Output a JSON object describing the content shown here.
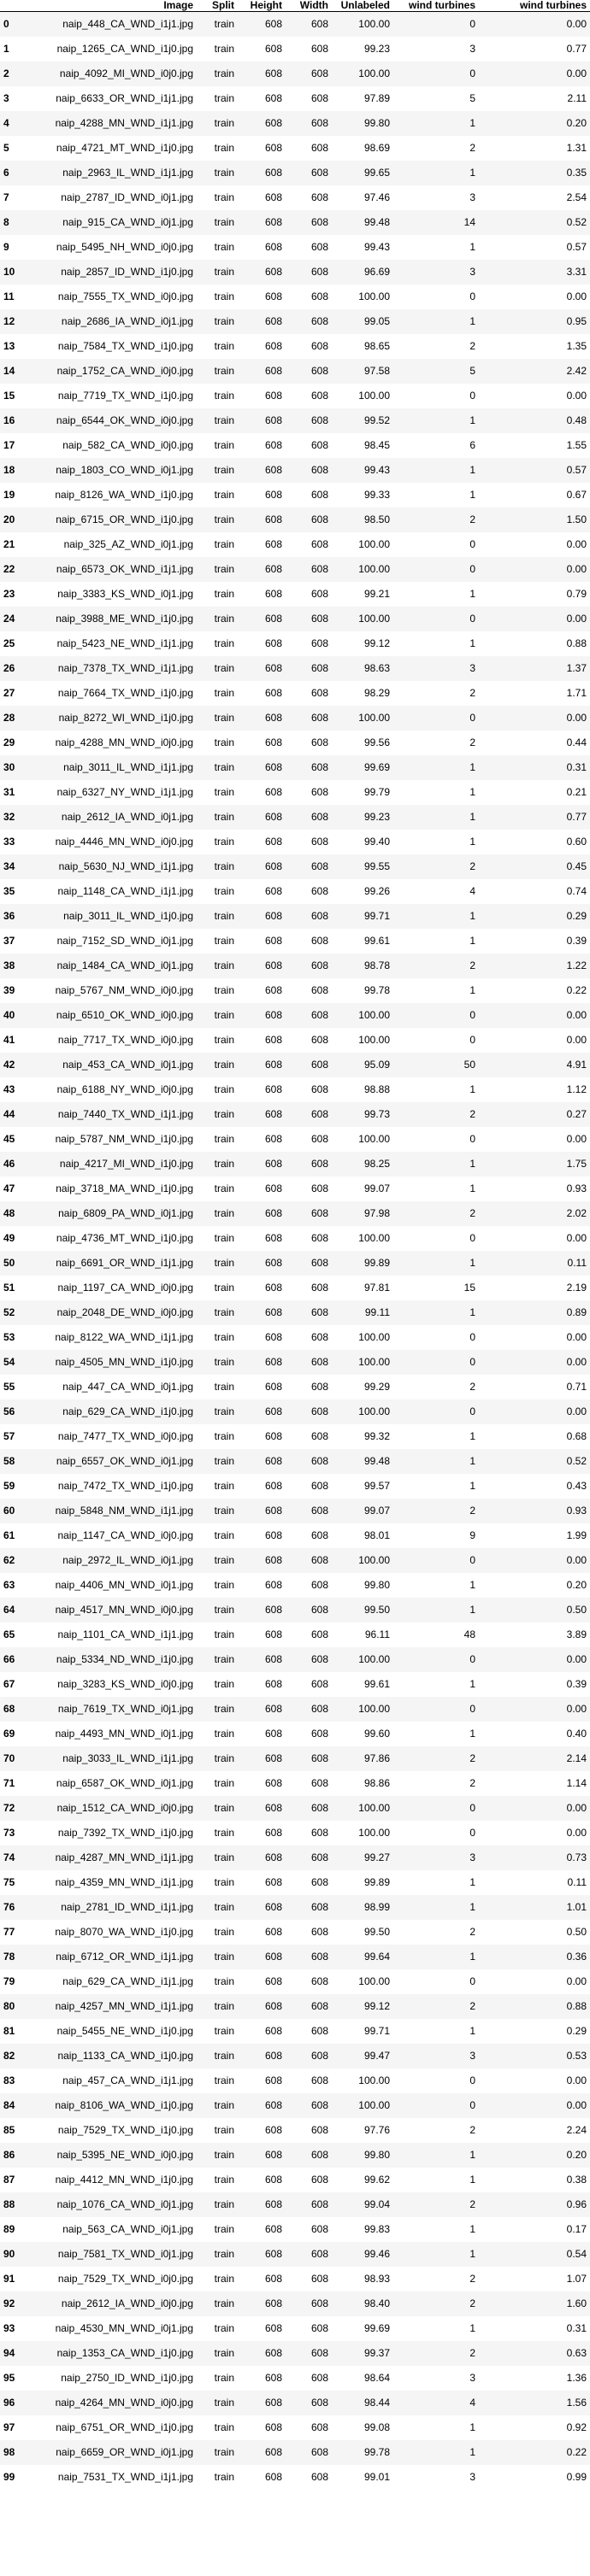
{
  "columns": [
    "",
    "Image",
    "Split",
    "Height",
    "Width",
    "Unlabeled",
    "wind turbines",
    "wind turbines"
  ],
  "rows": [
    [
      "0",
      "naip_448_CA_WND_i1j1.jpg",
      "train",
      "608",
      "608",
      "100.00",
      "0",
      "0.00"
    ],
    [
      "1",
      "naip_1265_CA_WND_i1j0.jpg",
      "train",
      "608",
      "608",
      "99.23",
      "3",
      "0.77"
    ],
    [
      "2",
      "naip_4092_MI_WND_i0j0.jpg",
      "train",
      "608",
      "608",
      "100.00",
      "0",
      "0.00"
    ],
    [
      "3",
      "naip_6633_OR_WND_i1j1.jpg",
      "train",
      "608",
      "608",
      "97.89",
      "5",
      "2.11"
    ],
    [
      "4",
      "naip_4288_MN_WND_i1j1.jpg",
      "train",
      "608",
      "608",
      "99.80",
      "1",
      "0.20"
    ],
    [
      "5",
      "naip_4721_MT_WND_i1j0.jpg",
      "train",
      "608",
      "608",
      "98.69",
      "2",
      "1.31"
    ],
    [
      "6",
      "naip_2963_IL_WND_i1j1.jpg",
      "train",
      "608",
      "608",
      "99.65",
      "1",
      "0.35"
    ],
    [
      "7",
      "naip_2787_ID_WND_i0j1.jpg",
      "train",
      "608",
      "608",
      "97.46",
      "3",
      "2.54"
    ],
    [
      "8",
      "naip_915_CA_WND_i0j1.jpg",
      "train",
      "608",
      "608",
      "99.48",
      "14",
      "0.52"
    ],
    [
      "9",
      "naip_5495_NH_WND_i0j0.jpg",
      "train",
      "608",
      "608",
      "99.43",
      "1",
      "0.57"
    ],
    [
      "10",
      "naip_2857_ID_WND_i1j0.jpg",
      "train",
      "608",
      "608",
      "96.69",
      "3",
      "3.31"
    ],
    [
      "11",
      "naip_7555_TX_WND_i0j0.jpg",
      "train",
      "608",
      "608",
      "100.00",
      "0",
      "0.00"
    ],
    [
      "12",
      "naip_2686_IA_WND_i0j1.jpg",
      "train",
      "608",
      "608",
      "99.05",
      "1",
      "0.95"
    ],
    [
      "13",
      "naip_7584_TX_WND_i1j0.jpg",
      "train",
      "608",
      "608",
      "98.65",
      "2",
      "1.35"
    ],
    [
      "14",
      "naip_1752_CA_WND_i0j0.jpg",
      "train",
      "608",
      "608",
      "97.58",
      "5",
      "2.42"
    ],
    [
      "15",
      "naip_7719_TX_WND_i1j0.jpg",
      "train",
      "608",
      "608",
      "100.00",
      "0",
      "0.00"
    ],
    [
      "16",
      "naip_6544_OK_WND_i0j0.jpg",
      "train",
      "608",
      "608",
      "99.52",
      "1",
      "0.48"
    ],
    [
      "17",
      "naip_582_CA_WND_i0j0.jpg",
      "train",
      "608",
      "608",
      "98.45",
      "6",
      "1.55"
    ],
    [
      "18",
      "naip_1803_CO_WND_i0j1.jpg",
      "train",
      "608",
      "608",
      "99.43",
      "1",
      "0.57"
    ],
    [
      "19",
      "naip_8126_WA_WND_i1j0.jpg",
      "train",
      "608",
      "608",
      "99.33",
      "1",
      "0.67"
    ],
    [
      "20",
      "naip_6715_OR_WND_i1j0.jpg",
      "train",
      "608",
      "608",
      "98.50",
      "2",
      "1.50"
    ],
    [
      "21",
      "naip_325_AZ_WND_i0j1.jpg",
      "train",
      "608",
      "608",
      "100.00",
      "0",
      "0.00"
    ],
    [
      "22",
      "naip_6573_OK_WND_i1j1.jpg",
      "train",
      "608",
      "608",
      "100.00",
      "0",
      "0.00"
    ],
    [
      "23",
      "naip_3383_KS_WND_i0j1.jpg",
      "train",
      "608",
      "608",
      "99.21",
      "1",
      "0.79"
    ],
    [
      "24",
      "naip_3988_ME_WND_i1j0.jpg",
      "train",
      "608",
      "608",
      "100.00",
      "0",
      "0.00"
    ],
    [
      "25",
      "naip_5423_NE_WND_i1j1.jpg",
      "train",
      "608",
      "608",
      "99.12",
      "1",
      "0.88"
    ],
    [
      "26",
      "naip_7378_TX_WND_i1j1.jpg",
      "train",
      "608",
      "608",
      "98.63",
      "3",
      "1.37"
    ],
    [
      "27",
      "naip_7664_TX_WND_i1j0.jpg",
      "train",
      "608",
      "608",
      "98.29",
      "2",
      "1.71"
    ],
    [
      "28",
      "naip_8272_WI_WND_i1j0.jpg",
      "train",
      "608",
      "608",
      "100.00",
      "0",
      "0.00"
    ],
    [
      "29",
      "naip_4288_MN_WND_i0j0.jpg",
      "train",
      "608",
      "608",
      "99.56",
      "2",
      "0.44"
    ],
    [
      "30",
      "naip_3011_IL_WND_i1j1.jpg",
      "train",
      "608",
      "608",
      "99.69",
      "1",
      "0.31"
    ],
    [
      "31",
      "naip_6327_NY_WND_i1j1.jpg",
      "train",
      "608",
      "608",
      "99.79",
      "1",
      "0.21"
    ],
    [
      "32",
      "naip_2612_IA_WND_i0j1.jpg",
      "train",
      "608",
      "608",
      "99.23",
      "1",
      "0.77"
    ],
    [
      "33",
      "naip_4446_MN_WND_i0j0.jpg",
      "train",
      "608",
      "608",
      "99.40",
      "1",
      "0.60"
    ],
    [
      "34",
      "naip_5630_NJ_WND_i1j1.jpg",
      "train",
      "608",
      "608",
      "99.55",
      "2",
      "0.45"
    ],
    [
      "35",
      "naip_1148_CA_WND_i1j1.jpg",
      "train",
      "608",
      "608",
      "99.26",
      "4",
      "0.74"
    ],
    [
      "36",
      "naip_3011_IL_WND_i1j0.jpg",
      "train",
      "608",
      "608",
      "99.71",
      "1",
      "0.29"
    ],
    [
      "37",
      "naip_7152_SD_WND_i0j1.jpg",
      "train",
      "608",
      "608",
      "99.61",
      "1",
      "0.39"
    ],
    [
      "38",
      "naip_1484_CA_WND_i0j1.jpg",
      "train",
      "608",
      "608",
      "98.78",
      "2",
      "1.22"
    ],
    [
      "39",
      "naip_5767_NM_WND_i0j0.jpg",
      "train",
      "608",
      "608",
      "99.78",
      "1",
      "0.22"
    ],
    [
      "40",
      "naip_6510_OK_WND_i0j0.jpg",
      "train",
      "608",
      "608",
      "100.00",
      "0",
      "0.00"
    ],
    [
      "41",
      "naip_7717_TX_WND_i0j0.jpg",
      "train",
      "608",
      "608",
      "100.00",
      "0",
      "0.00"
    ],
    [
      "42",
      "naip_453_CA_WND_i0j1.jpg",
      "train",
      "608",
      "608",
      "95.09",
      "50",
      "4.91"
    ],
    [
      "43",
      "naip_6188_NY_WND_i0j0.jpg",
      "train",
      "608",
      "608",
      "98.88",
      "1",
      "1.12"
    ],
    [
      "44",
      "naip_7440_TX_WND_i1j1.jpg",
      "train",
      "608",
      "608",
      "99.73",
      "2",
      "0.27"
    ],
    [
      "45",
      "naip_5787_NM_WND_i1j0.jpg",
      "train",
      "608",
      "608",
      "100.00",
      "0",
      "0.00"
    ],
    [
      "46",
      "naip_4217_MI_WND_i1j0.jpg",
      "train",
      "608",
      "608",
      "98.25",
      "1",
      "1.75"
    ],
    [
      "47",
      "naip_3718_MA_WND_i1j0.jpg",
      "train",
      "608",
      "608",
      "99.07",
      "1",
      "0.93"
    ],
    [
      "48",
      "naip_6809_PA_WND_i0j1.jpg",
      "train",
      "608",
      "608",
      "97.98",
      "2",
      "2.02"
    ],
    [
      "49",
      "naip_4736_MT_WND_i1j0.jpg",
      "train",
      "608",
      "608",
      "100.00",
      "0",
      "0.00"
    ],
    [
      "50",
      "naip_6691_OR_WND_i1j1.jpg",
      "train",
      "608",
      "608",
      "99.89",
      "1",
      "0.11"
    ],
    [
      "51",
      "naip_1197_CA_WND_i0j0.jpg",
      "train",
      "608",
      "608",
      "97.81",
      "15",
      "2.19"
    ],
    [
      "52",
      "naip_2048_DE_WND_i0j0.jpg",
      "train",
      "608",
      "608",
      "99.11",
      "1",
      "0.89"
    ],
    [
      "53",
      "naip_8122_WA_WND_i1j1.jpg",
      "train",
      "608",
      "608",
      "100.00",
      "0",
      "0.00"
    ],
    [
      "54",
      "naip_4505_MN_WND_i1j0.jpg",
      "train",
      "608",
      "608",
      "100.00",
      "0",
      "0.00"
    ],
    [
      "55",
      "naip_447_CA_WND_i0j1.jpg",
      "train",
      "608",
      "608",
      "99.29",
      "2",
      "0.71"
    ],
    [
      "56",
      "naip_629_CA_WND_i1j0.jpg",
      "train",
      "608",
      "608",
      "100.00",
      "0",
      "0.00"
    ],
    [
      "57",
      "naip_7477_TX_WND_i0j0.jpg",
      "train",
      "608",
      "608",
      "99.32",
      "1",
      "0.68"
    ],
    [
      "58",
      "naip_6557_OK_WND_i0j1.jpg",
      "train",
      "608",
      "608",
      "99.48",
      "1",
      "0.52"
    ],
    [
      "59",
      "naip_7472_TX_WND_i1j0.jpg",
      "train",
      "608",
      "608",
      "99.57",
      "1",
      "0.43"
    ],
    [
      "60",
      "naip_5848_NM_WND_i1j1.jpg",
      "train",
      "608",
      "608",
      "99.07",
      "2",
      "0.93"
    ],
    [
      "61",
      "naip_1147_CA_WND_i0j0.jpg",
      "train",
      "608",
      "608",
      "98.01",
      "9",
      "1.99"
    ],
    [
      "62",
      "naip_2972_IL_WND_i0j1.jpg",
      "train",
      "608",
      "608",
      "100.00",
      "0",
      "0.00"
    ],
    [
      "63",
      "naip_4406_MN_WND_i0j1.jpg",
      "train",
      "608",
      "608",
      "99.80",
      "1",
      "0.20"
    ],
    [
      "64",
      "naip_4517_MN_WND_i0j0.jpg",
      "train",
      "608",
      "608",
      "99.50",
      "1",
      "0.50"
    ],
    [
      "65",
      "naip_1101_CA_WND_i1j1.jpg",
      "train",
      "608",
      "608",
      "96.11",
      "48",
      "3.89"
    ],
    [
      "66",
      "naip_5334_ND_WND_i1j0.jpg",
      "train",
      "608",
      "608",
      "100.00",
      "0",
      "0.00"
    ],
    [
      "67",
      "naip_3283_KS_WND_i0j0.jpg",
      "train",
      "608",
      "608",
      "99.61",
      "1",
      "0.39"
    ],
    [
      "68",
      "naip_7619_TX_WND_i0j1.jpg",
      "train",
      "608",
      "608",
      "100.00",
      "0",
      "0.00"
    ],
    [
      "69",
      "naip_4493_MN_WND_i0j1.jpg",
      "train",
      "608",
      "608",
      "99.60",
      "1",
      "0.40"
    ],
    [
      "70",
      "naip_3033_IL_WND_i1j1.jpg",
      "train",
      "608",
      "608",
      "97.86",
      "2",
      "2.14"
    ],
    [
      "71",
      "naip_6587_OK_WND_i0j1.jpg",
      "train",
      "608",
      "608",
      "98.86",
      "2",
      "1.14"
    ],
    [
      "72",
      "naip_1512_CA_WND_i0j0.jpg",
      "train",
      "608",
      "608",
      "100.00",
      "0",
      "0.00"
    ],
    [
      "73",
      "naip_7392_TX_WND_i1j0.jpg",
      "train",
      "608",
      "608",
      "100.00",
      "0",
      "0.00"
    ],
    [
      "74",
      "naip_4287_MN_WND_i1j1.jpg",
      "train",
      "608",
      "608",
      "99.27",
      "3",
      "0.73"
    ],
    [
      "75",
      "naip_4359_MN_WND_i1j1.jpg",
      "train",
      "608",
      "608",
      "99.89",
      "1",
      "0.11"
    ],
    [
      "76",
      "naip_2781_ID_WND_i1j1.jpg",
      "train",
      "608",
      "608",
      "98.99",
      "1",
      "1.01"
    ],
    [
      "77",
      "naip_8070_WA_WND_i1j0.jpg",
      "train",
      "608",
      "608",
      "99.50",
      "2",
      "0.50"
    ],
    [
      "78",
      "naip_6712_OR_WND_i1j1.jpg",
      "train",
      "608",
      "608",
      "99.64",
      "1",
      "0.36"
    ],
    [
      "79",
      "naip_629_CA_WND_i1j1.jpg",
      "train",
      "608",
      "608",
      "100.00",
      "0",
      "0.00"
    ],
    [
      "80",
      "naip_4257_MN_WND_i1j1.jpg",
      "train",
      "608",
      "608",
      "99.12",
      "2",
      "0.88"
    ],
    [
      "81",
      "naip_5455_NE_WND_i1j0.jpg",
      "train",
      "608",
      "608",
      "99.71",
      "1",
      "0.29"
    ],
    [
      "82",
      "naip_1133_CA_WND_i1j0.jpg",
      "train",
      "608",
      "608",
      "99.47",
      "3",
      "0.53"
    ],
    [
      "83",
      "naip_457_CA_WND_i1j1.jpg",
      "train",
      "608",
      "608",
      "100.00",
      "0",
      "0.00"
    ],
    [
      "84",
      "naip_8106_WA_WND_i1j0.jpg",
      "train",
      "608",
      "608",
      "100.00",
      "0",
      "0.00"
    ],
    [
      "85",
      "naip_7529_TX_WND_i1j0.jpg",
      "train",
      "608",
      "608",
      "97.76",
      "2",
      "2.24"
    ],
    [
      "86",
      "naip_5395_NE_WND_i0j0.jpg",
      "train",
      "608",
      "608",
      "99.80",
      "1",
      "0.20"
    ],
    [
      "87",
      "naip_4412_MN_WND_i1j0.jpg",
      "train",
      "608",
      "608",
      "99.62",
      "1",
      "0.38"
    ],
    [
      "88",
      "naip_1076_CA_WND_i0j1.jpg",
      "train",
      "608",
      "608",
      "99.04",
      "2",
      "0.96"
    ],
    [
      "89",
      "naip_563_CA_WND_i0j1.jpg",
      "train",
      "608",
      "608",
      "99.83",
      "1",
      "0.17"
    ],
    [
      "90",
      "naip_7581_TX_WND_i0j1.jpg",
      "train",
      "608",
      "608",
      "99.46",
      "1",
      "0.54"
    ],
    [
      "91",
      "naip_7529_TX_WND_i0j0.jpg",
      "train",
      "608",
      "608",
      "98.93",
      "2",
      "1.07"
    ],
    [
      "92",
      "naip_2612_IA_WND_i0j0.jpg",
      "train",
      "608",
      "608",
      "98.40",
      "2",
      "1.60"
    ],
    [
      "93",
      "naip_4530_MN_WND_i0j1.jpg",
      "train",
      "608",
      "608",
      "99.69",
      "1",
      "0.31"
    ],
    [
      "94",
      "naip_1353_CA_WND_i1j0.jpg",
      "train",
      "608",
      "608",
      "99.37",
      "2",
      "0.63"
    ],
    [
      "95",
      "naip_2750_ID_WND_i1j0.jpg",
      "train",
      "608",
      "608",
      "98.64",
      "3",
      "1.36"
    ],
    [
      "96",
      "naip_4264_MN_WND_i0j0.jpg",
      "train",
      "608",
      "608",
      "98.44",
      "4",
      "1.56"
    ],
    [
      "97",
      "naip_6751_OR_WND_i1j0.jpg",
      "train",
      "608",
      "608",
      "99.08",
      "1",
      "0.92"
    ],
    [
      "98",
      "naip_6659_OR_WND_i0j1.jpg",
      "train",
      "608",
      "608",
      "99.78",
      "1",
      "0.22"
    ],
    [
      "99",
      "naip_7531_TX_WND_i1j1.jpg",
      "train",
      "608",
      "608",
      "99.01",
      "3",
      "0.99"
    ]
  ]
}
